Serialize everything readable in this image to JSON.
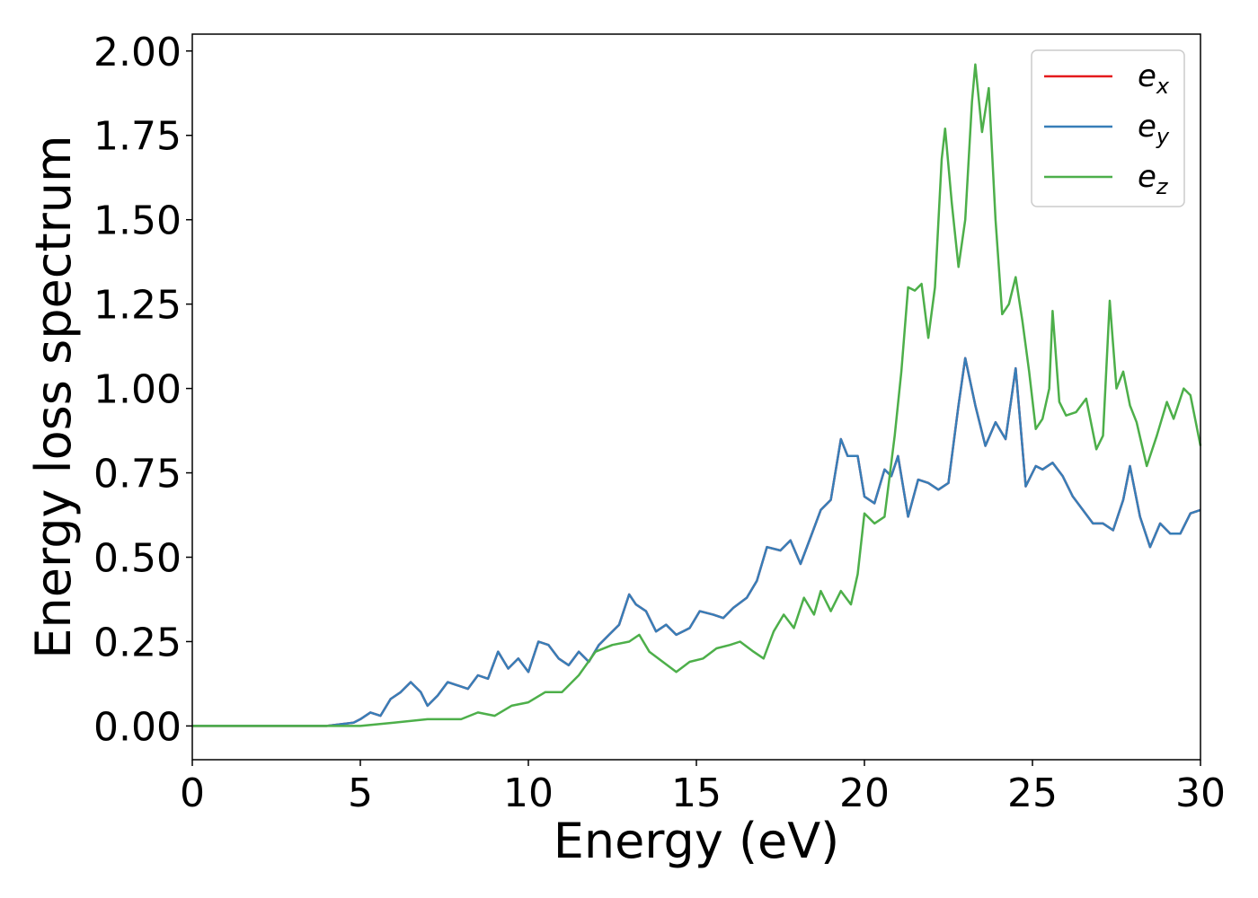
{
  "chart_data": {
    "type": "line",
    "title": "",
    "xlabel": "Energy (eV)",
    "ylabel": "Energy loss spectrum",
    "xlim": [
      0,
      30
    ],
    "ylim": [
      -0.1,
      2.05
    ],
    "xticks": [
      0,
      5,
      10,
      15,
      20,
      25,
      30
    ],
    "xtick_labels": [
      "0",
      "5",
      "10",
      "15",
      "20",
      "25",
      "30"
    ],
    "yticks": [
      0.0,
      0.25,
      0.5,
      0.75,
      1.0,
      1.25,
      1.5,
      1.75,
      2.0
    ],
    "ytick_labels": [
      "0.00",
      "0.25",
      "0.50",
      "0.75",
      "1.00",
      "1.25",
      "1.50",
      "1.75",
      "2.00"
    ],
    "grid": false,
    "legend": {
      "position": "top-right",
      "entries": [
        {
          "base": "e",
          "sub": "x",
          "color": "#e41a1c"
        },
        {
          "base": "e",
          "sub": "y",
          "color": "#377eb8"
        },
        {
          "base": "e",
          "sub": "z",
          "color": "#4daf4a"
        }
      ]
    },
    "series": [
      {
        "name": "e_x",
        "color": "#e41a1c",
        "x": [
          0,
          4.0,
          4.8,
          5.0,
          5.3,
          5.6,
          5.9,
          6.2,
          6.5,
          6.8,
          7.0,
          7.3,
          7.6,
          7.9,
          8.2,
          8.5,
          8.8,
          9.1,
          9.4,
          9.7,
          10.0,
          10.3,
          10.6,
          10.9,
          11.2,
          11.5,
          11.8,
          12.1,
          12.4,
          12.7,
          13.0,
          13.2,
          13.5,
          13.8,
          14.1,
          14.4,
          14.8,
          15.1,
          15.5,
          15.8,
          16.1,
          16.5,
          16.8,
          17.1,
          17.5,
          17.8,
          18.1,
          18.4,
          18.7,
          19.0,
          19.3,
          19.5,
          19.8,
          20.0,
          20.3,
          20.6,
          20.8,
          21.0,
          21.3,
          21.6,
          21.9,
          22.2,
          22.5,
          22.8,
          23.0,
          23.3,
          23.6,
          23.9,
          24.2,
          24.5,
          24.8,
          25.1,
          25.3,
          25.6,
          25.9,
          26.2,
          26.5,
          26.8,
          27.1,
          27.4,
          27.7,
          27.9,
          28.2,
          28.5,
          28.8,
          29.1,
          29.4,
          29.7,
          30.0
        ],
        "y": [
          0.0,
          0.0,
          0.01,
          0.02,
          0.04,
          0.03,
          0.08,
          0.1,
          0.13,
          0.1,
          0.06,
          0.09,
          0.13,
          0.12,
          0.11,
          0.15,
          0.14,
          0.22,
          0.17,
          0.2,
          0.16,
          0.25,
          0.24,
          0.2,
          0.18,
          0.22,
          0.19,
          0.24,
          0.27,
          0.3,
          0.39,
          0.36,
          0.34,
          0.28,
          0.3,
          0.27,
          0.29,
          0.34,
          0.33,
          0.32,
          0.35,
          0.38,
          0.43,
          0.53,
          0.52,
          0.55,
          0.48,
          0.56,
          0.64,
          0.67,
          0.85,
          0.8,
          0.8,
          0.68,
          0.66,
          0.76,
          0.74,
          0.8,
          0.62,
          0.73,
          0.72,
          0.7,
          0.72,
          0.95,
          1.09,
          0.95,
          0.83,
          0.9,
          0.85,
          1.06,
          0.71,
          0.77,
          0.76,
          0.78,
          0.74,
          0.68,
          0.64,
          0.6,
          0.6,
          0.58,
          0.67,
          0.77,
          0.62,
          0.53,
          0.6,
          0.57,
          0.57,
          0.63,
          0.64
        ]
      },
      {
        "name": "e_y",
        "color": "#377eb8",
        "x": [
          0,
          4.0,
          4.8,
          5.0,
          5.3,
          5.6,
          5.9,
          6.2,
          6.5,
          6.8,
          7.0,
          7.3,
          7.6,
          7.9,
          8.2,
          8.5,
          8.8,
          9.1,
          9.4,
          9.7,
          10.0,
          10.3,
          10.6,
          10.9,
          11.2,
          11.5,
          11.8,
          12.1,
          12.4,
          12.7,
          13.0,
          13.2,
          13.5,
          13.8,
          14.1,
          14.4,
          14.8,
          15.1,
          15.5,
          15.8,
          16.1,
          16.5,
          16.8,
          17.1,
          17.5,
          17.8,
          18.1,
          18.4,
          18.7,
          19.0,
          19.3,
          19.5,
          19.8,
          20.0,
          20.3,
          20.6,
          20.8,
          21.0,
          21.3,
          21.6,
          21.9,
          22.2,
          22.5,
          22.8,
          23.0,
          23.3,
          23.6,
          23.9,
          24.2,
          24.5,
          24.8,
          25.1,
          25.3,
          25.6,
          25.9,
          26.2,
          26.5,
          26.8,
          27.1,
          27.4,
          27.7,
          27.9,
          28.2,
          28.5,
          28.8,
          29.1,
          29.4,
          29.7,
          30.0
        ],
        "y": [
          0.0,
          0.0,
          0.01,
          0.02,
          0.04,
          0.03,
          0.08,
          0.1,
          0.13,
          0.1,
          0.06,
          0.09,
          0.13,
          0.12,
          0.11,
          0.15,
          0.14,
          0.22,
          0.17,
          0.2,
          0.16,
          0.25,
          0.24,
          0.2,
          0.18,
          0.22,
          0.19,
          0.24,
          0.27,
          0.3,
          0.39,
          0.36,
          0.34,
          0.28,
          0.3,
          0.27,
          0.29,
          0.34,
          0.33,
          0.32,
          0.35,
          0.38,
          0.43,
          0.53,
          0.52,
          0.55,
          0.48,
          0.56,
          0.64,
          0.67,
          0.85,
          0.8,
          0.8,
          0.68,
          0.66,
          0.76,
          0.74,
          0.8,
          0.62,
          0.73,
          0.72,
          0.7,
          0.72,
          0.95,
          1.09,
          0.95,
          0.83,
          0.9,
          0.85,
          1.06,
          0.71,
          0.77,
          0.76,
          0.78,
          0.74,
          0.68,
          0.64,
          0.6,
          0.6,
          0.58,
          0.67,
          0.77,
          0.62,
          0.53,
          0.6,
          0.57,
          0.57,
          0.63,
          0.64
        ]
      },
      {
        "name": "e_z",
        "color": "#4daf4a",
        "x": [
          0,
          4.0,
          5.0,
          6.0,
          7.0,
          7.5,
          8.0,
          8.5,
          9.0,
          9.5,
          10.0,
          10.5,
          11.0,
          11.5,
          12.0,
          12.5,
          13.0,
          13.3,
          13.6,
          14.0,
          14.4,
          14.8,
          15.2,
          15.6,
          16.0,
          16.3,
          16.7,
          17.0,
          17.3,
          17.6,
          17.9,
          18.2,
          18.5,
          18.7,
          19.0,
          19.3,
          19.6,
          19.8,
          20.0,
          20.3,
          20.6,
          20.9,
          21.1,
          21.3,
          21.5,
          21.7,
          21.9,
          22.1,
          22.3,
          22.4,
          22.6,
          22.8,
          23.0,
          23.2,
          23.3,
          23.5,
          23.7,
          23.9,
          24.1,
          24.3,
          24.5,
          24.7,
          24.9,
          25.1,
          25.3,
          25.5,
          25.6,
          25.8,
          26.0,
          26.3,
          26.6,
          26.9,
          27.1,
          27.3,
          27.5,
          27.7,
          27.9,
          28.1,
          28.4,
          28.7,
          29.0,
          29.2,
          29.5,
          29.7,
          30.0
        ],
        "y": [
          0.0,
          0.0,
          0.0,
          0.01,
          0.02,
          0.02,
          0.02,
          0.04,
          0.03,
          0.06,
          0.07,
          0.1,
          0.1,
          0.15,
          0.22,
          0.24,
          0.25,
          0.27,
          0.22,
          0.19,
          0.16,
          0.19,
          0.2,
          0.23,
          0.24,
          0.25,
          0.22,
          0.2,
          0.28,
          0.33,
          0.29,
          0.38,
          0.33,
          0.4,
          0.34,
          0.4,
          0.36,
          0.45,
          0.63,
          0.6,
          0.62,
          0.86,
          1.05,
          1.3,
          1.29,
          1.31,
          1.15,
          1.3,
          1.68,
          1.77,
          1.55,
          1.36,
          1.5,
          1.85,
          1.96,
          1.76,
          1.89,
          1.5,
          1.22,
          1.25,
          1.33,
          1.2,
          1.05,
          0.88,
          0.91,
          1.0,
          1.23,
          0.96,
          0.92,
          0.93,
          0.97,
          0.82,
          0.86,
          1.26,
          1.0,
          1.05,
          0.95,
          0.9,
          0.77,
          0.86,
          0.96,
          0.91,
          1.0,
          0.98,
          0.83
        ]
      }
    ]
  }
}
